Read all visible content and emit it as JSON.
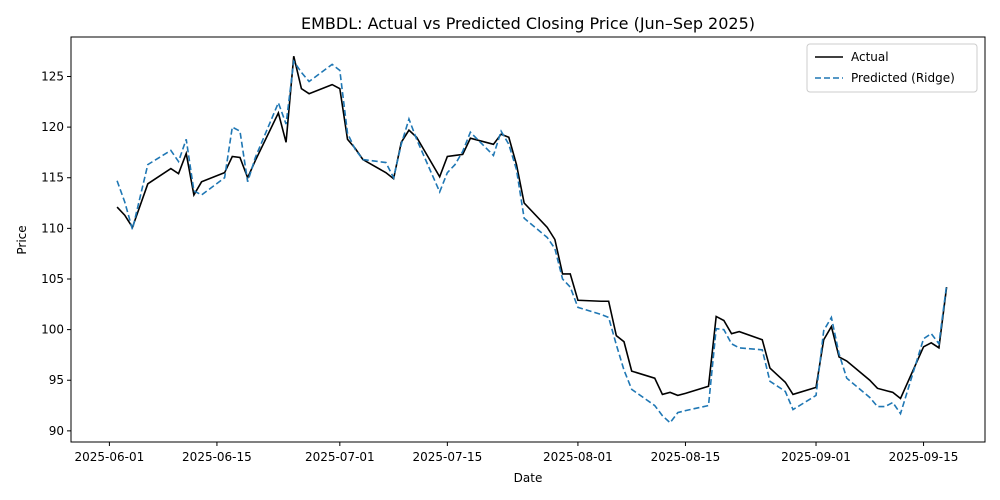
{
  "chart_data": {
    "type": "line",
    "title": "EMBDL: Actual vs Predicted Closing Price (Jun–Sep 2025)",
    "x_label": "Date",
    "y_label": "Price",
    "x": [
      "2025-06-02",
      "2025-06-03",
      "2025-06-04",
      "2025-06-06",
      "2025-06-09",
      "2025-06-10",
      "2025-06-11",
      "2025-06-12",
      "2025-06-13",
      "2025-06-16",
      "2025-06-17",
      "2025-06-18",
      "2025-06-19",
      "2025-06-20",
      "2025-06-23",
      "2025-06-24",
      "2025-06-25",
      "2025-06-26",
      "2025-06-27",
      "2025-06-30",
      "2025-07-01",
      "2025-07-02",
      "2025-07-03",
      "2025-07-04",
      "2025-07-07",
      "2025-07-08",
      "2025-07-09",
      "2025-07-10",
      "2025-07-11",
      "2025-07-14",
      "2025-07-15",
      "2025-07-16",
      "2025-07-17",
      "2025-07-18",
      "2025-07-21",
      "2025-07-22",
      "2025-07-23",
      "2025-07-24",
      "2025-07-25",
      "2025-07-28",
      "2025-07-29",
      "2025-07-30",
      "2025-07-31",
      "2025-08-01",
      "2025-08-04",
      "2025-08-05",
      "2025-08-06",
      "2025-08-07",
      "2025-08-08",
      "2025-08-11",
      "2025-08-12",
      "2025-08-13",
      "2025-08-14",
      "2025-08-15",
      "2025-08-18",
      "2025-08-19",
      "2025-08-20",
      "2025-08-21",
      "2025-08-22",
      "2025-08-25",
      "2025-08-26",
      "2025-08-27",
      "2025-08-28",
      "2025-08-29",
      "2025-09-01",
      "2025-09-02",
      "2025-09-03",
      "2025-09-04",
      "2025-09-05",
      "2025-09-08",
      "2025-09-09",
      "2025-09-10",
      "2025-09-11",
      "2025-09-12",
      "2025-09-15",
      "2025-09-16",
      "2025-09-17",
      "2025-09-18"
    ],
    "series": [
      {
        "name": "Actual",
        "color": "#000000",
        "dash": "solid",
        "values": [
          112.1,
          111.3,
          110.1,
          114.4,
          115.9,
          115.4,
          117.4,
          113.3,
          114.6,
          115.5,
          117.1,
          117.0,
          115.0,
          116.7,
          121.4,
          118.5,
          127.0,
          123.8,
          123.3,
          124.2,
          123.8,
          118.8,
          117.9,
          116.8,
          115.5,
          114.9,
          118.5,
          119.7,
          119.0,
          115.1,
          117.1,
          117.2,
          117.3,
          118.9,
          118.3,
          119.3,
          119.0,
          116.3,
          112.5,
          110.1,
          108.9,
          105.5,
          105.5,
          102.9,
          102.8,
          102.8,
          99.4,
          98.8,
          95.9,
          95.2,
          93.6,
          93.8,
          93.5,
          93.7,
          94.4,
          101.3,
          100.9,
          99.6,
          99.8,
          99.0,
          96.2,
          95.5,
          94.8,
          93.6,
          94.3,
          99.0,
          100.3,
          97.3,
          96.9,
          95.0,
          94.2,
          94.0,
          93.8,
          93.2,
          98.3,
          98.7,
          98.2,
          104.2
        ]
      },
      {
        "name": "Predicted (Ridge)",
        "color": "#1f77b4",
        "dash": "dashed",
        "values": [
          114.7,
          112.6,
          109.9,
          116.3,
          117.7,
          116.6,
          118.8,
          113.7,
          113.3,
          115.0,
          120.0,
          119.6,
          114.6,
          117.0,
          122.4,
          120.3,
          126.5,
          125.4,
          124.5,
          126.2,
          125.6,
          119.4,
          117.8,
          116.8,
          116.5,
          115.0,
          118.3,
          120.8,
          118.8,
          113.6,
          115.5,
          116.3,
          117.6,
          119.5,
          117.2,
          119.6,
          118.3,
          115.8,
          111.0,
          109.1,
          108.0,
          105.0,
          104.2,
          102.2,
          101.5,
          101.2,
          98.5,
          96.0,
          94.1,
          92.5,
          91.5,
          90.8,
          91.8,
          92.0,
          92.5,
          100.1,
          100.0,
          98.6,
          98.2,
          98.0,
          94.9,
          94.4,
          93.9,
          92.1,
          93.5,
          99.9,
          101.2,
          97.6,
          95.2,
          93.3,
          92.4,
          92.4,
          92.8,
          91.7,
          99.1,
          99.6,
          98.6,
          104.4
        ]
      }
    ],
    "xlim": [
      "2025-05-27",
      "2025-09-23"
    ],
    "xticks": [
      "2025-06-01",
      "2025-06-15",
      "2025-07-01",
      "2025-07-15",
      "2025-08-01",
      "2025-08-15",
      "2025-09-01",
      "2025-09-15"
    ],
    "ylim": [
      88.9,
      128.9
    ],
    "yticks": [
      90,
      95,
      100,
      105,
      110,
      115,
      120,
      125
    ],
    "grid": false,
    "legend": "upper right"
  }
}
